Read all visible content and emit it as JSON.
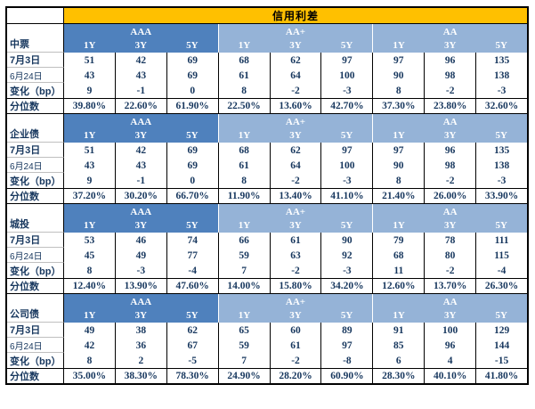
{
  "title": "信用利差",
  "colors": {
    "title_bg": "#FFC000",
    "aaa_header_bg": "#4F81BD",
    "aa_header_bg": "#95B3D7",
    "text": "#17375E"
  },
  "rating_groups": [
    "AAA",
    "AA+",
    "AA"
  ],
  "tenors": [
    "1Y",
    "3Y",
    "5Y"
  ],
  "row_labels": {
    "date1": "7月3日",
    "date2": "6月24日",
    "change": "变化（bp）",
    "pct": "分位数"
  },
  "chart_data": {
    "type": "table",
    "title": "信用利差",
    "columns": [
      "AAA 1Y",
      "AAA 3Y",
      "AAA 5Y",
      "AA+ 1Y",
      "AA+ 3Y",
      "AA+ 5Y",
      "AA 1Y",
      "AA 3Y",
      "AA 5Y"
    ],
    "sections": [
      {
        "name": "中票",
        "rows": {
          "7月3日": [
            51,
            42,
            69,
            68,
            62,
            97,
            97,
            96,
            135
          ],
          "6月24日": [
            43,
            43,
            69,
            61,
            64,
            100,
            90,
            98,
            138
          ],
          "变化（bp）": [
            9,
            -1,
            0,
            8,
            -2,
            -3,
            8,
            -2,
            -3
          ],
          "分位数": [
            "39.80%",
            "22.60%",
            "61.90%",
            "22.50%",
            "13.60%",
            "42.70%",
            "37.30%",
            "23.80%",
            "32.60%"
          ]
        }
      },
      {
        "name": "企业债",
        "rows": {
          "7月3日": [
            51,
            42,
            69,
            68,
            62,
            97,
            97,
            96,
            135
          ],
          "6月24日": [
            43,
            43,
            69,
            61,
            64,
            100,
            90,
            98,
            138
          ],
          "变化（bp）": [
            9,
            -1,
            0,
            8,
            -2,
            -3,
            8,
            -2,
            -3
          ],
          "分位数": [
            "37.20%",
            "30.20%",
            "66.70%",
            "11.90%",
            "13.40%",
            "41.10%",
            "21.40%",
            "26.00%",
            "33.90%"
          ]
        }
      },
      {
        "name": "城投",
        "rows": {
          "7月3日": [
            53,
            46,
            74,
            66,
            61,
            90,
            79,
            78,
            111
          ],
          "6月24日": [
            45,
            49,
            77,
            59,
            63,
            92,
            68,
            80,
            115
          ],
          "变化（bp）": [
            8,
            -3,
            -4,
            7,
            -2,
            -3,
            11,
            -2,
            -4
          ],
          "分位数": [
            "12.40%",
            "13.90%",
            "47.60%",
            "14.00%",
            "15.80%",
            "34.20%",
            "12.60%",
            "13.70%",
            "26.30%"
          ]
        }
      },
      {
        "name": "公司债",
        "rows": {
          "7月3日": [
            49,
            38,
            62,
            65,
            60,
            89,
            91,
            100,
            129
          ],
          "6月24日": [
            42,
            36,
            67,
            59,
            61,
            97,
            85,
            96,
            144
          ],
          "变化（bp）": [
            8,
            2,
            -5,
            7,
            -2,
            -8,
            6,
            4,
            -15
          ],
          "分位数": [
            "35.00%",
            "38.30%",
            "78.30%",
            "24.90%",
            "28.20%",
            "60.90%",
            "28.30%",
            "40.10%",
            "41.80%"
          ]
        }
      }
    ]
  },
  "sections": [
    {
      "name": "中票",
      "date1": [
        51,
        42,
        69,
        68,
        62,
        97,
        97,
        96,
        135
      ],
      "date2": [
        43,
        43,
        69,
        61,
        64,
        100,
        90,
        98,
        138
      ],
      "change": [
        9,
        -1,
        0,
        8,
        -2,
        -3,
        8,
        -2,
        -3
      ],
      "pct": [
        "39.80%",
        "22.60%",
        "61.90%",
        "22.50%",
        "13.60%",
        "42.70%",
        "37.30%",
        "23.80%",
        "32.60%"
      ]
    },
    {
      "name": "企业债",
      "date1": [
        51,
        42,
        69,
        68,
        62,
        97,
        97,
        96,
        135
      ],
      "date2": [
        43,
        43,
        69,
        61,
        64,
        100,
        90,
        98,
        138
      ],
      "change": [
        9,
        -1,
        0,
        8,
        -2,
        -3,
        8,
        -2,
        -3
      ],
      "pct": [
        "37.20%",
        "30.20%",
        "66.70%",
        "11.90%",
        "13.40%",
        "41.10%",
        "21.40%",
        "26.00%",
        "33.90%"
      ]
    },
    {
      "name": "城投",
      "date1": [
        53,
        46,
        74,
        66,
        61,
        90,
        79,
        78,
        111
      ],
      "date2": [
        45,
        49,
        77,
        59,
        63,
        92,
        68,
        80,
        115
      ],
      "change": [
        8,
        -3,
        -4,
        7,
        -2,
        -3,
        11,
        -2,
        -4
      ],
      "pct": [
        "12.40%",
        "13.90%",
        "47.60%",
        "14.00%",
        "15.80%",
        "34.20%",
        "12.60%",
        "13.70%",
        "26.30%"
      ]
    },
    {
      "name": "公司债",
      "date1": [
        49,
        38,
        62,
        65,
        60,
        89,
        91,
        100,
        129
      ],
      "date2": [
        42,
        36,
        67,
        59,
        61,
        97,
        85,
        96,
        144
      ],
      "change": [
        8,
        2,
        -5,
        7,
        -2,
        -8,
        6,
        4,
        -15
      ],
      "pct": [
        "35.00%",
        "38.30%",
        "78.30%",
        "24.90%",
        "28.20%",
        "60.90%",
        "28.30%",
        "40.10%",
        "41.80%"
      ]
    }
  ]
}
